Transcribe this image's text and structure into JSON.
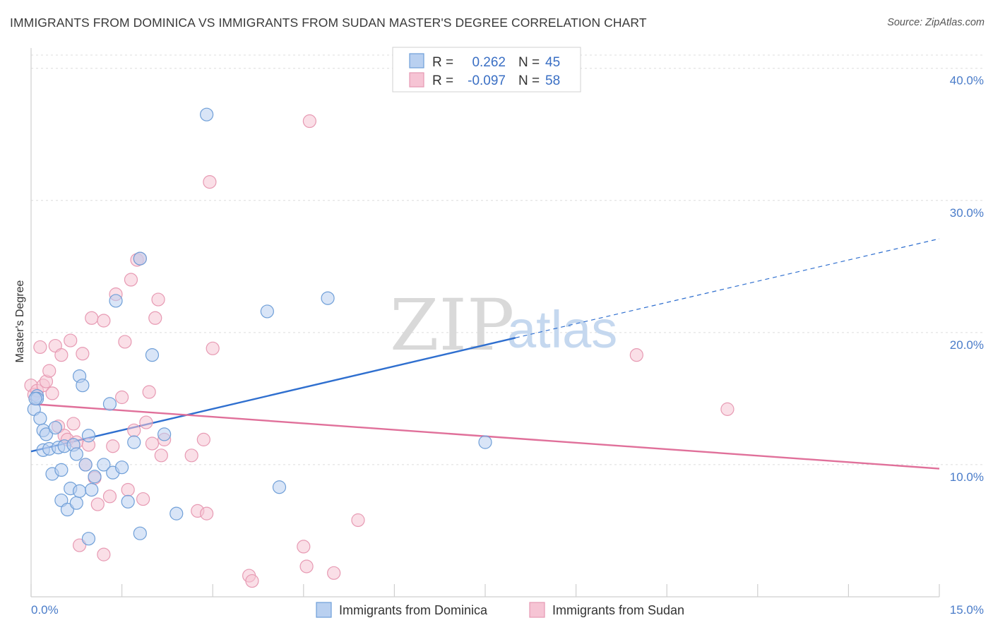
{
  "title": "IMMIGRANTS FROM DOMINICA VS IMMIGRANTS FROM SUDAN MASTER'S DEGREE CORRELATION CHART",
  "source": "Source: ZipAtlas.com",
  "watermark": {
    "zip": "ZIP",
    "atlas": "atlas"
  },
  "chart_data": {
    "type": "scatter",
    "xlabel": "",
    "ylabel": "Master's Degree",
    "xlim": [
      0,
      15
    ],
    "ylim": [
      0,
      41
    ],
    "x_tick_labels": [
      {
        "value": 0,
        "label": "0.0%"
      },
      {
        "value": 15,
        "label": "15.0%"
      }
    ],
    "x_minor_ticks": [
      0,
      1.5,
      3,
      4.5,
      6,
      7.5,
      9,
      10.5,
      12,
      13.5,
      15
    ],
    "y_ticks": [
      {
        "value": 10,
        "label": "10.0%"
      },
      {
        "value": 20,
        "label": "20.0%"
      },
      {
        "value": 30,
        "label": "30.0%"
      },
      {
        "value": 40,
        "label": "40.0%"
      }
    ],
    "legend": {
      "rows": [
        {
          "r_label": "R =",
          "r_value": "0.262",
          "n_label": "N =",
          "n_value": "45"
        },
        {
          "r_label": "R =",
          "r_value": "-0.097",
          "n_label": "N =",
          "n_value": "58"
        }
      ]
    },
    "series": [
      {
        "name": "Immigrants from Dominica",
        "color": "#6f9fd8",
        "fill": "#b9d0f0",
        "trend": {
          "x": [
            0,
            8.0
          ],
          "y": [
            11.0,
            19.6
          ],
          "dashed_to": [
            15,
            27.1
          ],
          "color": "#2f6fcf"
        },
        "points": [
          [
            0.05,
            14.2
          ],
          [
            0.1,
            15.2
          ],
          [
            0.1,
            15.0
          ],
          [
            0.15,
            13.5
          ],
          [
            0.2,
            11.1
          ],
          [
            0.2,
            12.6
          ],
          [
            0.25,
            12.3
          ],
          [
            0.3,
            11.2
          ],
          [
            0.35,
            9.3
          ],
          [
            0.4,
            12.8
          ],
          [
            0.45,
            11.3
          ],
          [
            0.5,
            9.6
          ],
          [
            0.5,
            7.3
          ],
          [
            0.55,
            11.4
          ],
          [
            0.6,
            6.6
          ],
          [
            0.65,
            8.2
          ],
          [
            0.7,
            11.5
          ],
          [
            0.75,
            10.8
          ],
          [
            0.75,
            7.1
          ],
          [
            0.8,
            16.7
          ],
          [
            0.8,
            8.0
          ],
          [
            0.9,
            10.0
          ],
          [
            0.95,
            12.2
          ],
          [
            0.95,
            4.4
          ],
          [
            1.0,
            8.1
          ],
          [
            1.05,
            9.1
          ],
          [
            1.2,
            10.0
          ],
          [
            1.3,
            14.6
          ],
          [
            1.35,
            9.4
          ],
          [
            1.4,
            22.4
          ],
          [
            1.5,
            9.8
          ],
          [
            1.6,
            7.2
          ],
          [
            1.7,
            11.7
          ],
          [
            1.8,
            25.6
          ],
          [
            1.8,
            4.8
          ],
          [
            2.0,
            18.3
          ],
          [
            2.2,
            12.3
          ],
          [
            2.4,
            6.3
          ],
          [
            2.9,
            36.5
          ],
          [
            3.9,
            21.6
          ],
          [
            4.1,
            8.3
          ],
          [
            4.9,
            22.6
          ],
          [
            7.5,
            11.7
          ],
          [
            0.07,
            15.0
          ],
          [
            0.85,
            16.0
          ]
        ]
      },
      {
        "name": "Immigrants from Sudan",
        "color": "#e79ab3",
        "fill": "#f6c4d4",
        "trend": {
          "x": [
            0,
            15
          ],
          "y": [
            14.6,
            9.7
          ],
          "color": "#e0709a"
        },
        "points": [
          [
            0.0,
            16.0
          ],
          [
            0.05,
            15.3
          ],
          [
            0.1,
            15.6
          ],
          [
            0.15,
            18.9
          ],
          [
            0.2,
            16.0
          ],
          [
            0.25,
            16.3
          ],
          [
            0.3,
            17.1
          ],
          [
            0.35,
            15.4
          ],
          [
            0.4,
            19.0
          ],
          [
            0.45,
            12.9
          ],
          [
            0.5,
            18.3
          ],
          [
            0.55,
            12.2
          ],
          [
            0.6,
            11.9
          ],
          [
            0.65,
            19.4
          ],
          [
            0.7,
            13.1
          ],
          [
            0.75,
            11.7
          ],
          [
            0.8,
            3.9
          ],
          [
            0.85,
            18.4
          ],
          [
            0.9,
            10.0
          ],
          [
            0.95,
            11.5
          ],
          [
            1.0,
            21.1
          ],
          [
            1.05,
            9.0
          ],
          [
            1.1,
            7.0
          ],
          [
            1.2,
            20.9
          ],
          [
            1.2,
            3.2
          ],
          [
            1.3,
            7.6
          ],
          [
            1.35,
            11.4
          ],
          [
            1.4,
            22.9
          ],
          [
            1.5,
            15.1
          ],
          [
            1.55,
            19.3
          ],
          [
            1.6,
            8.1
          ],
          [
            1.65,
            24.0
          ],
          [
            1.7,
            12.6
          ],
          [
            1.75,
            25.5
          ],
          [
            1.8,
            25.6
          ],
          [
            1.85,
            7.4
          ],
          [
            1.9,
            13.2
          ],
          [
            1.95,
            15.5
          ],
          [
            2.0,
            11.6
          ],
          [
            2.05,
            21.1
          ],
          [
            2.1,
            22.5
          ],
          [
            2.15,
            10.7
          ],
          [
            2.2,
            11.9
          ],
          [
            2.65,
            10.7
          ],
          [
            2.75,
            6.5
          ],
          [
            2.85,
            11.9
          ],
          [
            2.9,
            6.3
          ],
          [
            2.95,
            31.4
          ],
          [
            3.0,
            18.8
          ],
          [
            3.6,
            1.6
          ],
          [
            3.65,
            1.2
          ],
          [
            4.5,
            3.8
          ],
          [
            4.55,
            2.3
          ],
          [
            4.6,
            36.0
          ],
          [
            5.0,
            1.8
          ],
          [
            5.4,
            5.8
          ],
          [
            10.0,
            18.3
          ],
          [
            11.5,
            14.2
          ]
        ]
      }
    ]
  },
  "legend_bottom": [
    {
      "label": "Immigrants from Dominica"
    },
    {
      "label": "Immigrants from Sudan"
    }
  ]
}
